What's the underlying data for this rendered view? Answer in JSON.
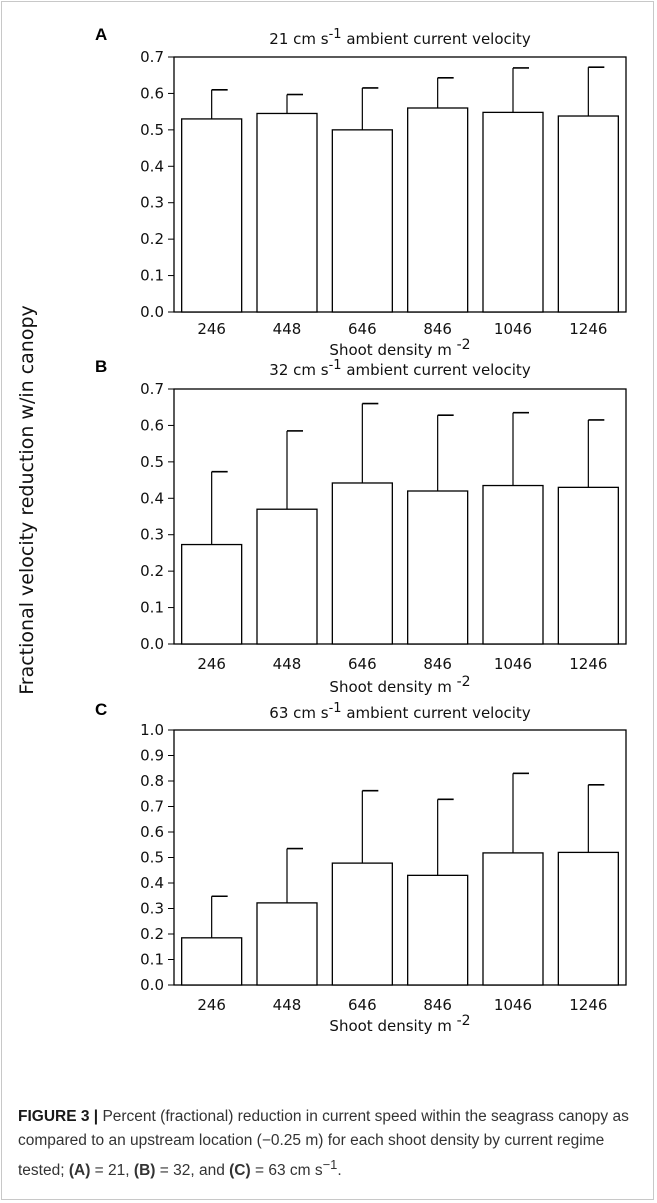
{
  "y_axis_label": "Fractional velocity reduction w/in canopy",
  "chart_data": [
    {
      "type": "bar",
      "panel": "A",
      "title": "21 cm s-1 ambient current velocity",
      "title_parts": [
        "21 cm s",
        "-1",
        " ambient current velocity"
      ],
      "xlabel_parts": [
        "Shoot density m ",
        "-2"
      ],
      "categories": [
        "246",
        "448",
        "646",
        "846",
        "1046",
        "1246"
      ],
      "values": [
        0.53,
        0.545,
        0.5,
        0.56,
        0.548,
        0.538
      ],
      "error_upper": [
        0.61,
        0.597,
        0.615,
        0.643,
        0.67,
        0.672
      ],
      "ylim": [
        0,
        0.7
      ],
      "yticks": [
        "0.0",
        "0.1",
        "0.2",
        "0.3",
        "0.4",
        "0.5",
        "0.6",
        "0.7"
      ]
    },
    {
      "type": "bar",
      "panel": "B",
      "title": "32 cm s-1 ambient current velocity",
      "title_parts": [
        "32 cm s",
        "-1",
        " ambient current velocity"
      ],
      "xlabel_parts": [
        "Shoot density m ",
        "-2"
      ],
      "categories": [
        "246",
        "448",
        "646",
        "846",
        "1046",
        "1246"
      ],
      "values": [
        0.273,
        0.37,
        0.442,
        0.42,
        0.435,
        0.43
      ],
      "error_upper": [
        0.473,
        0.585,
        0.66,
        0.628,
        0.635,
        0.615
      ],
      "ylim": [
        0,
        0.7
      ],
      "yticks": [
        "0.0",
        "0.1",
        "0.2",
        "0.3",
        "0.4",
        "0.5",
        "0.6",
        "0.7"
      ]
    },
    {
      "type": "bar",
      "panel": "C",
      "title": "63 cm s-1 ambient current velocity",
      "title_parts": [
        "63 cm s",
        "-1",
        " ambient current velocity"
      ],
      "xlabel_parts": [
        "Shoot density m ",
        "-2"
      ],
      "categories": [
        "246",
        "448",
        "646",
        "846",
        "1046",
        "1246"
      ],
      "values": [
        0.185,
        0.322,
        0.478,
        0.43,
        0.518,
        0.52
      ],
      "error_upper": [
        0.348,
        0.535,
        0.762,
        0.728,
        0.83,
        0.785
      ],
      "ylim": [
        0,
        1.0
      ],
      "yticks": [
        "0.0",
        "0.1",
        "0.2",
        "0.3",
        "0.4",
        "0.5",
        "0.6",
        "0.7",
        "0.8",
        "0.9",
        "1.0"
      ]
    }
  ],
  "caption": {
    "figure_label": "FIGURE 3",
    "separator": " | ",
    "text": "Percent (fractional) reduction in current speed within the seagrass canopy as compared to an upstream location (−0.25 m) for each shoot density by current regime tested;",
    "part_a_label": "(A)",
    "part_a_value": " = 21, ",
    "part_b_label": "(B)",
    "part_b_value": " = 32, and ",
    "part_c_label": "(C)",
    "part_c_value": " = 63 cm s",
    "unit_exp": "−1",
    "end": "."
  }
}
